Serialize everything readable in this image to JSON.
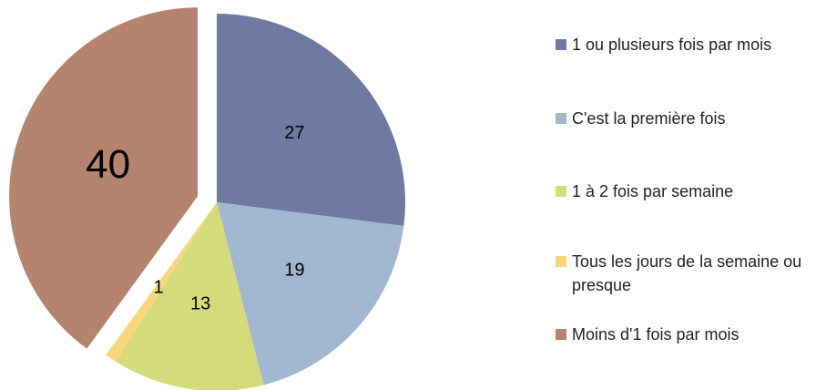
{
  "chart_data": {
    "type": "pie",
    "categories": [
      "1 ou plusieurs fois par mois",
      "C'est la première fois",
      "1 à 2 fois par semaine",
      "Tous les jours de la semaine ou presque",
      "Moins d'1 fois par mois"
    ],
    "values": [
      27,
      19,
      13,
      1,
      40
    ],
    "colors": [
      "#6f7aa3",
      "#a1b8d0",
      "#d4dc7a",
      "#f9d67c",
      "#b5846f"
    ],
    "legend": "right"
  }
}
